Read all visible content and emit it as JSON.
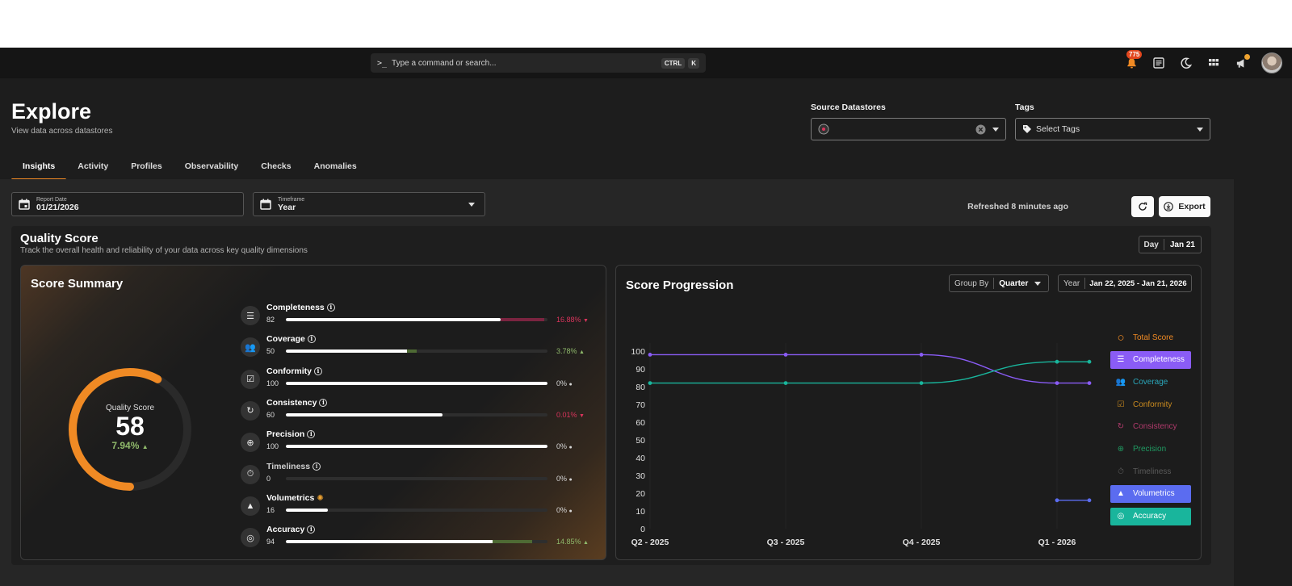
{
  "topbar": {
    "search_placeholder": "Type a command or search...",
    "shortcut_keys": [
      "CTRL",
      "K"
    ],
    "notifications_count": "775",
    "icons": [
      "bell-icon",
      "news-icon",
      "moon-icon",
      "grid-icon",
      "megaphone-icon"
    ]
  },
  "header": {
    "title": "Explore",
    "subtitle": "View data across datastores"
  },
  "filters": {
    "source_label": "Source Datastores",
    "tags_label": "Tags",
    "tags_placeholder": "Select Tags"
  },
  "tabs": [
    "Insights",
    "Activity",
    "Profiles",
    "Observability",
    "Checks",
    "Anomalies"
  ],
  "controls": {
    "report_date_label": "Report Date",
    "report_date_value": "01/21/2026",
    "timeframe_label": "Timeframe",
    "timeframe_value": "Year",
    "refreshed_text": "Refreshed 8 minutes ago",
    "export_label": "Export"
  },
  "quality": {
    "title": "Quality Score",
    "subtitle": "Track the overall health and reliability of your data across key quality dimensions",
    "period_unit": "Day",
    "period_value": "Jan 21"
  },
  "summary": {
    "title": "Score Summary",
    "gauge_label": "Quality Score",
    "score": "58",
    "score_value": 58,
    "delta": "7.94%",
    "metrics": [
      {
        "name": "Completeness",
        "value": "82",
        "score": 82,
        "delta": "16.88%",
        "trend": "down"
      },
      {
        "name": "Coverage",
        "value": "50",
        "score": 50,
        "delta": "3.78%",
        "trend": "up"
      },
      {
        "name": "Conformity",
        "value": "100",
        "score": 100,
        "delta": "0%",
        "trend": "flat"
      },
      {
        "name": "Consistency",
        "value": "60",
        "score": 60,
        "delta": "0.01%",
        "trend": "down"
      },
      {
        "name": "Precision",
        "value": "100",
        "score": 100,
        "delta": "0%",
        "trend": "flat"
      },
      {
        "name": "Timeliness",
        "value": "0",
        "score": 0,
        "delta": "0%",
        "trend": "flat"
      },
      {
        "name": "Volumetrics",
        "value": "16",
        "score": 16,
        "delta": "0%",
        "trend": "flat"
      },
      {
        "name": "Accuracy",
        "value": "94",
        "score": 94,
        "delta": "14.85%",
        "trend": "up"
      }
    ]
  },
  "progression": {
    "title": "Score Progression",
    "group_by_label": "Group By",
    "group_by_value": "Quarter",
    "range_unit": "Year",
    "range_value": "Jan 22, 2025 - Jan 21, 2026",
    "legend": [
      {
        "name": "Total Score",
        "color": "#f08a24",
        "active": false
      },
      {
        "name": "Completeness",
        "color": "#8a5cf6",
        "active": true
      },
      {
        "name": "Coverage",
        "color": "#2aa5b8",
        "active": false
      },
      {
        "name": "Conformity",
        "color": "#c98a1f",
        "active": false
      },
      {
        "name": "Consistency",
        "color": "#b03a6b",
        "active": false
      },
      {
        "name": "Precision",
        "color": "#1f9b62",
        "active": false
      },
      {
        "name": "Timeliness",
        "color": "#5a5a5a",
        "active": false
      },
      {
        "name": "Volumetrics",
        "color": "#5b6cf0",
        "active": true
      },
      {
        "name": "Accuracy",
        "color": "#19b59c",
        "active": true
      }
    ]
  },
  "chart_data": {
    "type": "line",
    "x": [
      "Q2 - 2025",
      "Q3 - 2025",
      "Q4 - 2025",
      "Q1 - 2026"
    ],
    "ylim": [
      0,
      100
    ],
    "yticks": [
      0,
      10,
      20,
      30,
      40,
      50,
      60,
      70,
      80,
      90,
      100
    ],
    "series": [
      {
        "name": "Completeness",
        "color": "#8a5cf6",
        "points": [
          [
            "Q2 - 2025",
            98
          ],
          [
            "Q3 - 2025",
            98
          ],
          [
            "Q4 - 2025",
            98
          ],
          [
            "Q1 - 2026",
            82
          ],
          [
            "Q1 - 2026 end",
            82
          ]
        ]
      },
      {
        "name": "Accuracy",
        "color": "#19b59c",
        "points": [
          [
            "Q2 - 2025",
            82
          ],
          [
            "Q3 - 2025",
            82
          ],
          [
            "Q4 - 2025",
            82
          ],
          [
            "Q1 - 2026",
            94
          ],
          [
            "Q1 - 2026 end",
            94
          ]
        ]
      },
      {
        "name": "Volumetrics",
        "color": "#5b6cf0",
        "points": [
          [
            "Q1 - 2026",
            16
          ],
          [
            "Q1 - 2026 end",
            16
          ]
        ]
      }
    ],
    "legend_position": "right",
    "grid": false
  }
}
